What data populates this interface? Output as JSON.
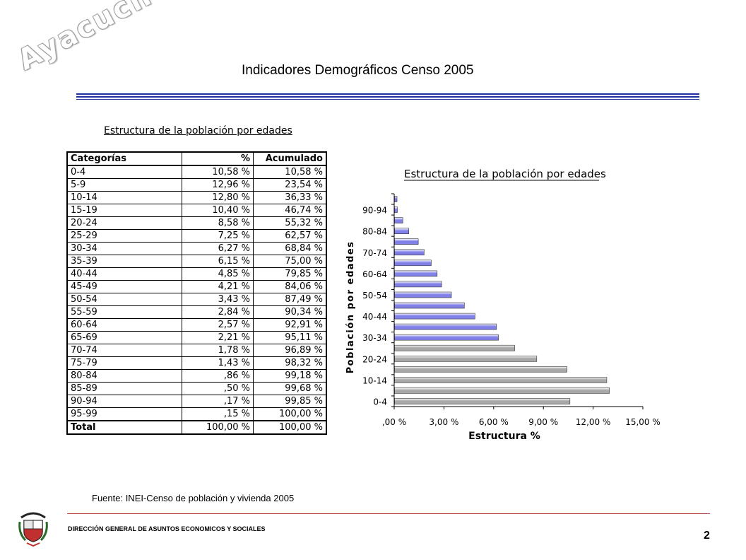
{
  "watermark": "Ayacucho",
  "header": {
    "title": "Indicadores Demográficos Censo 2005"
  },
  "table": {
    "caption": "Estructura de la población por edades",
    "headers": [
      "Categorías",
      "%",
      "Acumulado"
    ],
    "rows": [
      [
        "0-4",
        "10,58 %",
        "10,58 %"
      ],
      [
        "5-9",
        "12,96 %",
        "23,54 %"
      ],
      [
        "10-14",
        "12,80 %",
        "36,33 %"
      ],
      [
        "15-19",
        "10,40 %",
        "46,74 %"
      ],
      [
        "20-24",
        "8,58 %",
        "55,32 %"
      ],
      [
        "25-29",
        "7,25 %",
        "62,57 %"
      ],
      [
        "30-34",
        "6,27 %",
        "68,84 %"
      ],
      [
        "35-39",
        "6,15 %",
        "75,00 %"
      ],
      [
        "40-44",
        "4,85 %",
        "79,85 %"
      ],
      [
        "45-49",
        "4,21 %",
        "84,06 %"
      ],
      [
        "50-54",
        "3,43 %",
        "87,49 %"
      ],
      [
        "55-59",
        "2,84 %",
        "90,34 %"
      ],
      [
        "60-64",
        "2,57 %",
        "92,91 %"
      ],
      [
        "65-69",
        "2,21 %",
        "95,11 %"
      ],
      [
        "70-74",
        "1,78 %",
        "96,89 %"
      ],
      [
        "75-79",
        "1,43 %",
        "98,32 %"
      ],
      [
        "80-84",
        ",86 %",
        "99,18 %"
      ],
      [
        "85-89",
        ",50 %",
        "99,68 %"
      ],
      [
        "90-94",
        ",17 %",
        "99,85 %"
      ],
      [
        "95-99",
        ",15 %",
        "100,00 %"
      ]
    ],
    "total": [
      "Total",
      "100,00 %",
      "100,00 %"
    ]
  },
  "chart_data": {
    "type": "bar",
    "orientation": "horizontal",
    "title": "Estructura de la población por edades",
    "xlabel": "Estructura %",
    "ylabel": "Población por edades",
    "categories": [
      "0-4",
      "5-9",
      "10-14",
      "15-19",
      "20-24",
      "25-29",
      "30-34",
      "35-39",
      "40-44",
      "45-49",
      "50-54",
      "55-59",
      "60-64",
      "65-69",
      "70-74",
      "75-79",
      "80-84",
      "85-89",
      "90-94",
      "95-99"
    ],
    "values": [
      10.58,
      12.96,
      12.8,
      10.4,
      8.58,
      7.25,
      6.27,
      6.15,
      4.85,
      4.21,
      3.43,
      2.84,
      2.57,
      2.21,
      1.78,
      1.43,
      0.86,
      0.5,
      0.17,
      0.15
    ],
    "ytick_labels": [
      "0-4",
      "10-14",
      "20-24",
      "30-34",
      "40-44",
      "50-54",
      "60-64",
      "70-74",
      "80-84",
      "90-94"
    ],
    "xtick_labels": [
      ",00 %",
      "3,00 %",
      "6,00 %",
      "9,00 %",
      "12,00 %",
      "15,00 %"
    ],
    "xticks": [
      0,
      3,
      6,
      9,
      12,
      15
    ],
    "xlim": [
      0,
      15
    ],
    "bar_colors": {
      "young": "#a8a8a8",
      "older": "#8080e8"
    },
    "color_split_index": 6,
    "grid": false,
    "legend": "none"
  },
  "footer": {
    "source": "Fuente: INEI-Censo de población y vivienda 2005",
    "org": "DIRECCIÓN GENERAL DE ASUNTOS ECONOMICOS Y SOCIALES",
    "page": "2",
    "emblem_text": "REPUBLICA DEL PERU"
  }
}
